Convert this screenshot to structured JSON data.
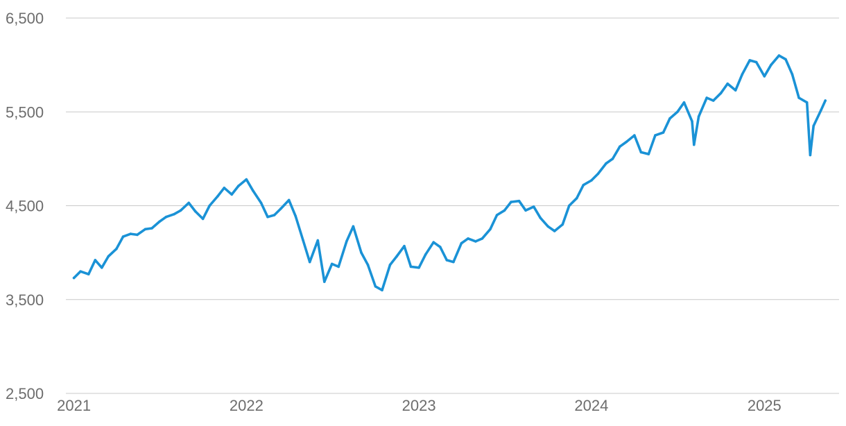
{
  "chart_data": {
    "type": "line",
    "title": "",
    "xlabel": "",
    "ylabel": "",
    "grid": "horizontal",
    "legend": "none",
    "colors": {
      "line": "#1a92d6",
      "grid": "#c8c8c8",
      "tick_text": "#6d6d6d"
    },
    "xlim": [
      "2020-12-15",
      "2025-06-08"
    ],
    "ylim": [
      2500,
      6500
    ],
    "x_ticks": [
      {
        "date": "2021-01-01",
        "label": "2021"
      },
      {
        "date": "2022-01-01",
        "label": "2022"
      },
      {
        "date": "2023-01-01",
        "label": "2023"
      },
      {
        "date": "2024-01-01",
        "label": "2024"
      },
      {
        "date": "2025-01-01",
        "label": "2025"
      }
    ],
    "y_ticks": [
      {
        "value": 2500,
        "label": "2,500"
      },
      {
        "value": 3500,
        "label": "3,500"
      },
      {
        "value": 4500,
        "label": "4,500"
      },
      {
        "value": 5500,
        "label": "5,500"
      },
      {
        "value": 6500,
        "label": "6,500"
      }
    ],
    "series": [
      {
        "color": "#1a92d6",
        "x": [
          "2021-01-01",
          "2021-01-15",
          "2021-02-01",
          "2021-02-15",
          "2021-03-01",
          "2021-03-15",
          "2021-04-01",
          "2021-04-15",
          "2021-05-01",
          "2021-05-15",
          "2021-06-01",
          "2021-06-15",
          "2021-07-01",
          "2021-07-15",
          "2021-08-01",
          "2021-08-15",
          "2021-09-01",
          "2021-09-15",
          "2021-10-01",
          "2021-10-15",
          "2021-11-01",
          "2021-11-15",
          "2021-12-01",
          "2021-12-15",
          "2022-01-01",
          "2022-01-15",
          "2022-02-01",
          "2022-02-15",
          "2022-03-01",
          "2022-03-15",
          "2022-04-01",
          "2022-04-15",
          "2022-05-01",
          "2022-05-15",
          "2022-06-01",
          "2022-06-15",
          "2022-07-01",
          "2022-07-15",
          "2022-08-01",
          "2022-08-15",
          "2022-09-01",
          "2022-09-15",
          "2022-10-01",
          "2022-10-15",
          "2022-11-01",
          "2022-11-15",
          "2022-12-01",
          "2022-12-15",
          "2023-01-01",
          "2023-01-15",
          "2023-02-01",
          "2023-02-15",
          "2023-03-01",
          "2023-03-15",
          "2023-04-01",
          "2023-04-15",
          "2023-05-01",
          "2023-05-15",
          "2023-06-01",
          "2023-06-15",
          "2023-07-01",
          "2023-07-15",
          "2023-08-01",
          "2023-08-15",
          "2023-09-01",
          "2023-09-15",
          "2023-10-01",
          "2023-10-15",
          "2023-11-01",
          "2023-11-15",
          "2023-12-01",
          "2023-12-15",
          "2024-01-01",
          "2024-01-15",
          "2024-02-01",
          "2024-02-15",
          "2024-03-01",
          "2024-03-15",
          "2024-04-01",
          "2024-04-15",
          "2024-05-01",
          "2024-05-15",
          "2024-06-01",
          "2024-06-15",
          "2024-07-01",
          "2024-07-15",
          "2024-08-01",
          "2024-08-05",
          "2024-08-15",
          "2024-09-01",
          "2024-09-15",
          "2024-10-01",
          "2024-10-15",
          "2024-11-01",
          "2024-11-15",
          "2024-12-01",
          "2024-12-15",
          "2025-01-01",
          "2025-01-15",
          "2025-02-01",
          "2025-02-15",
          "2025-03-01",
          "2025-03-15",
          "2025-04-01",
          "2025-04-08",
          "2025-04-15",
          "2025-05-01",
          "2025-05-10"
        ],
        "values": [
          3730,
          3800,
          3770,
          3920,
          3840,
          3960,
          4040,
          4170,
          4200,
          4190,
          4250,
          4260,
          4330,
          4380,
          4410,
          4450,
          4530,
          4440,
          4360,
          4500,
          4600,
          4690,
          4620,
          4710,
          4780,
          4660,
          4530,
          4380,
          4400,
          4470,
          4560,
          4390,
          4130,
          3900,
          4130,
          3690,
          3880,
          3850,
          4120,
          4280,
          4000,
          3870,
          3640,
          3600,
          3870,
          3960,
          4070,
          3850,
          3840,
          3980,
          4110,
          4060,
          3920,
          3900,
          4100,
          4150,
          4120,
          4150,
          4250,
          4400,
          4450,
          4540,
          4550,
          4450,
          4490,
          4370,
          4280,
          4230,
          4300,
          4500,
          4580,
          4720,
          4770,
          4840,
          4950,
          5000,
          5130,
          5180,
          5250,
          5070,
          5050,
          5250,
          5280,
          5430,
          5500,
          5600,
          5400,
          5150,
          5450,
          5650,
          5620,
          5700,
          5800,
          5730,
          5900,
          6050,
          6030,
          5880,
          6000,
          6100,
          6060,
          5900,
          5650,
          5600,
          5040,
          5350,
          5520,
          5620
        ]
      }
    ]
  }
}
